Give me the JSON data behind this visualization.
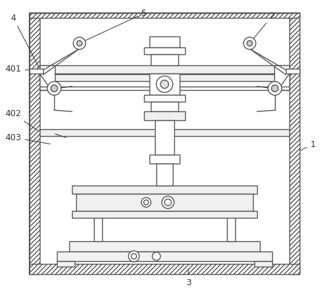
{
  "bg_color": "#ffffff",
  "line_color": "#555555",
  "fig_width": 4.74,
  "fig_height": 4.22,
  "label_color": "#333333",
  "label_fs": 9
}
